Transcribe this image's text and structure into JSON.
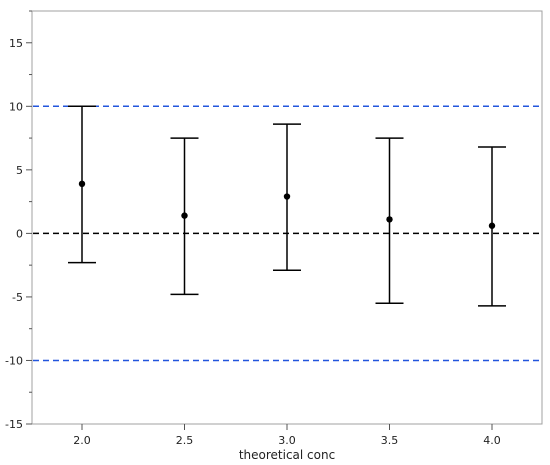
{
  "chart_data": {
    "type": "scatter",
    "xlabel": "theoretical conc",
    "ylabel": "",
    "title": "",
    "grid": false,
    "ylim": [
      -15,
      17.5
    ],
    "yticks": [
      -15,
      -10,
      -5,
      0,
      5,
      10,
      15
    ],
    "y_minor_step": 2.5,
    "categories": [
      "2.0",
      "2.5",
      "3.0",
      "3.5",
      "4.0"
    ],
    "points": [
      {
        "x": "2.0",
        "mean": 3.9,
        "lower": -2.3,
        "upper": 10.0
      },
      {
        "x": "2.5",
        "mean": 1.4,
        "lower": -4.8,
        "upper": 7.5
      },
      {
        "x": "3.0",
        "mean": 2.9,
        "lower": -2.9,
        "upper": 8.6
      },
      {
        "x": "3.5",
        "mean": 1.1,
        "lower": -5.5,
        "upper": 7.5
      },
      {
        "x": "4.0",
        "mean": 0.6,
        "lower": -5.7,
        "upper": 6.8
      }
    ],
    "reference_lines": [
      {
        "y": 10,
        "style": "dashed",
        "color": "#2255dd"
      },
      {
        "y": 0,
        "style": "dashed",
        "color": "#000000"
      },
      {
        "y": -10,
        "style": "dashed",
        "color": "#2255dd"
      }
    ]
  }
}
